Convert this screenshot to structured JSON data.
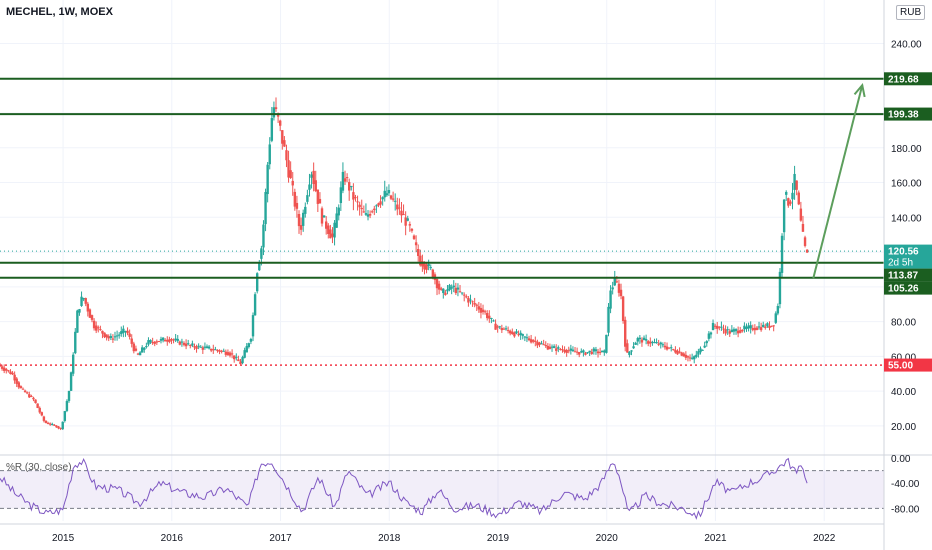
{
  "header": {
    "title": "MECHEL, 1W, MOEX",
    "currency": "RUB"
  },
  "indicator": {
    "label": "%R (30, close)"
  },
  "chart_data": [
    {
      "type": "candlestick",
      "title": "MECHEL, 1W, MOEX",
      "y_ticks": [
        "20.00",
        "40.00",
        "60.00",
        "80.00",
        "100.00",
        "120.00",
        "140.00",
        "160.00",
        "180.00",
        "200.00",
        "220.00",
        "240.00"
      ],
      "x_ticks": [
        "2015",
        "2016",
        "2017",
        "2018",
        "2019",
        "2020",
        "2021",
        "2022"
      ],
      "x_tick_values": [
        2015,
        2016,
        2017,
        2018,
        2019,
        2020,
        2021,
        2022
      ],
      "ylim": [
        5,
        265
      ],
      "xlim": [
        2014.42,
        2022.55
      ],
      "price_path": [
        [
          2014.42,
          55
        ],
        [
          2014.55,
          50
        ],
        [
          2014.62,
          42
        ],
        [
          2014.75,
          35
        ],
        [
          2014.85,
          22
        ],
        [
          2014.95,
          20
        ],
        [
          2015.0,
          18
        ],
        [
          2015.08,
          42
        ],
        [
          2015.15,
          85
        ],
        [
          2015.2,
          95
        ],
        [
          2015.3,
          78
        ],
        [
          2015.45,
          70
        ],
        [
          2015.6,
          75
        ],
        [
          2015.7,
          60
        ],
        [
          2015.8,
          68
        ],
        [
          2016.0,
          70
        ],
        [
          2016.2,
          66
        ],
        [
          2016.4,
          64
        ],
        [
          2016.55,
          62
        ],
        [
          2016.65,
          56
        ],
        [
          2016.75,
          72
        ],
        [
          2016.8,
          108
        ],
        [
          2016.85,
          125
        ],
        [
          2016.9,
          170
        ],
        [
          2016.95,
          205
        ],
        [
          2017.0,
          195
        ],
        [
          2017.1,
          165
        ],
        [
          2017.2,
          132
        ],
        [
          2017.3,
          168
        ],
        [
          2017.4,
          140
        ],
        [
          2017.5,
          128
        ],
        [
          2017.6,
          165
        ],
        [
          2017.7,
          150
        ],
        [
          2017.8,
          140
        ],
        [
          2017.9,
          148
        ],
        [
          2018.0,
          154
        ],
        [
          2018.1,
          145
        ],
        [
          2018.2,
          135
        ],
        [
          2018.3,
          115
        ],
        [
          2018.4,
          110
        ],
        [
          2018.5,
          96
        ],
        [
          2018.6,
          100
        ],
        [
          2018.7,
          95
        ],
        [
          2018.8,
          90
        ],
        [
          2018.9,
          85
        ],
        [
          2019.0,
          77
        ],
        [
          2019.1,
          75
        ],
        [
          2019.3,
          70
        ],
        [
          2019.5,
          65
        ],
        [
          2019.7,
          63
        ],
        [
          2019.8,
          62
        ],
        [
          2019.9,
          63
        ],
        [
          2020.0,
          62
        ],
        [
          2020.05,
          98
        ],
        [
          2020.1,
          104
        ],
        [
          2020.15,
          95
        ],
        [
          2020.2,
          60
        ],
        [
          2020.3,
          70
        ],
        [
          2020.5,
          67
        ],
        [
          2020.7,
          62
        ],
        [
          2020.8,
          58
        ],
        [
          2020.9,
          65
        ],
        [
          2021.0,
          78
        ],
        [
          2021.15,
          74
        ],
        [
          2021.3,
          76
        ],
        [
          2021.45,
          77
        ],
        [
          2021.55,
          78
        ],
        [
          2021.6,
          92
        ],
        [
          2021.62,
          118
        ],
        [
          2021.65,
          153
        ],
        [
          2021.7,
          148
        ],
        [
          2021.75,
          162
        ],
        [
          2021.8,
          138
        ],
        [
          2021.84,
          122
        ],
        [
          2021.86,
          118
        ]
      ],
      "drawn_levels": [
        {
          "value": 219.68,
          "label": "219.68",
          "color": "#1b5e20",
          "style": "solid"
        },
        {
          "value": 199.38,
          "label": "199.38",
          "color": "#1b5e20",
          "style": "solid"
        },
        {
          "value": 113.87,
          "label": "113.87",
          "color": "#1b5e20",
          "style": "solid"
        },
        {
          "value": 105.26,
          "label": "105.26",
          "color": "#1b5e20",
          "style": "solid"
        },
        {
          "value": 55.0,
          "label": "55.00",
          "color": "#f23645",
          "style": "dotted"
        }
      ],
      "last_price": {
        "value": 120.56,
        "label": "120.56",
        "countdown": "2d 5h",
        "color": "#26a69a"
      },
      "projection_arrow": {
        "from": [
          2021.9,
          105
        ],
        "to": [
          2022.35,
          216
        ],
        "color": "#5c9e5c"
      }
    },
    {
      "type": "line",
      "name": "%R (30, close)",
      "y_ticks": [
        "0.00",
        "-40.00",
        "-80.00"
      ],
      "y_tick_values": [
        0,
        -40,
        -80
      ],
      "ylim": [
        -100,
        0
      ],
      "bands": [
        -20,
        -80
      ],
      "band_fill": "#7e57c2",
      "line_color": "#7e57c2",
      "values_path": [
        [
          2014.42,
          -30
        ],
        [
          2014.55,
          -55
        ],
        [
          2014.7,
          -75
        ],
        [
          2014.85,
          -88
        ],
        [
          2015.0,
          -82
        ],
        [
          2015.1,
          -10
        ],
        [
          2015.18,
          -5
        ],
        [
          2015.3,
          -45
        ],
        [
          2015.5,
          -50
        ],
        [
          2015.7,
          -72
        ],
        [
          2015.9,
          -40
        ],
        [
          2016.1,
          -55
        ],
        [
          2016.3,
          -62
        ],
        [
          2016.5,
          -48
        ],
        [
          2016.7,
          -78
        ],
        [
          2016.82,
          -8
        ],
        [
          2016.92,
          -5
        ],
        [
          2017.05,
          -42
        ],
        [
          2017.2,
          -85
        ],
        [
          2017.35,
          -30
        ],
        [
          2017.5,
          -78
        ],
        [
          2017.62,
          -20
        ],
        [
          2017.8,
          -60
        ],
        [
          2018.0,
          -38
        ],
        [
          2018.15,
          -70
        ],
        [
          2018.3,
          -85
        ],
        [
          2018.45,
          -50
        ],
        [
          2018.6,
          -80
        ],
        [
          2018.8,
          -75
        ],
        [
          2019.0,
          -90
        ],
        [
          2019.2,
          -70
        ],
        [
          2019.4,
          -85
        ],
        [
          2019.6,
          -55
        ],
        [
          2019.8,
          -65
        ],
        [
          2019.95,
          -40
        ],
        [
          2020.06,
          -3
        ],
        [
          2020.12,
          -30
        ],
        [
          2020.2,
          -90
        ],
        [
          2020.35,
          -60
        ],
        [
          2020.5,
          -72
        ],
        [
          2020.7,
          -80
        ],
        [
          2020.85,
          -92
        ],
        [
          2021.0,
          -38
        ],
        [
          2021.15,
          -55
        ],
        [
          2021.3,
          -40
        ],
        [
          2021.45,
          -30
        ],
        [
          2021.6,
          -12
        ],
        [
          2021.66,
          -3
        ],
        [
          2021.75,
          -25
        ],
        [
          2021.8,
          -8
        ],
        [
          2021.86,
          -55
        ]
      ]
    }
  ]
}
